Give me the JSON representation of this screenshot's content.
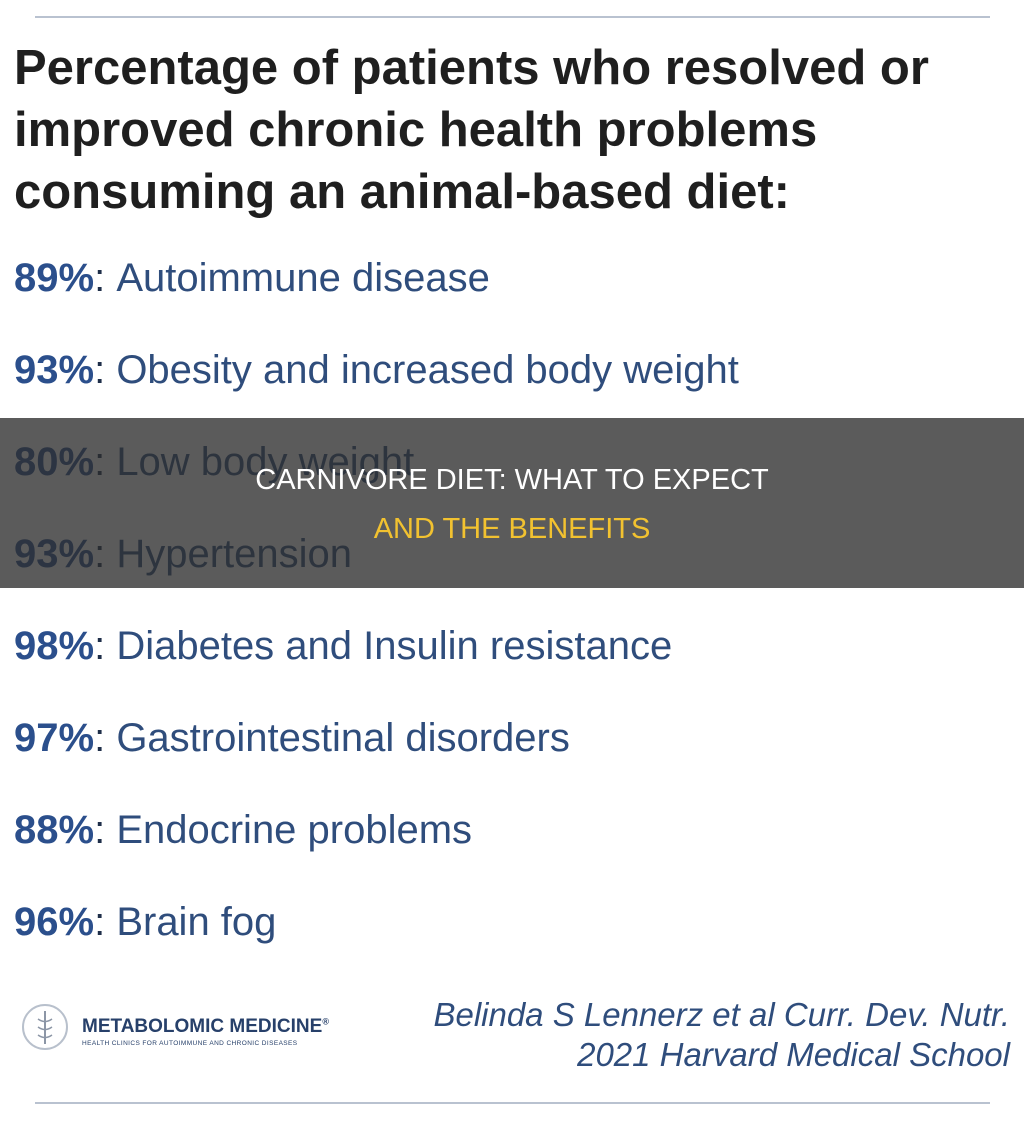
{
  "title": [
    "Percentage of patients who resolved or",
    "improved chronic health problems",
    "consuming an animal-based diet:"
  ],
  "separator": ":",
  "items": [
    {
      "percent": "89%",
      "label": "Autoimmune disease"
    },
    {
      "percent": "93%",
      "label": "Obesity and increased body weight"
    },
    {
      "percent": "80%",
      "label": "Low body weight"
    },
    {
      "percent": "93%",
      "label": "Hypertension"
    },
    {
      "percent": "98%",
      "label": "Diabetes and Insulin resistance"
    },
    {
      "percent": "97%",
      "label": "Gastrointestinal disorders"
    },
    {
      "percent": "88%",
      "label": "Endocrine problems"
    },
    {
      "percent": "96%",
      "label": "Brain fog"
    }
  ],
  "logo": {
    "name": "METABOLOMIC MEDICINE",
    "mark": "®",
    "tagline": "HEALTH CLINICS FOR AUTOIMMUNE AND CHRONIC DISEASES"
  },
  "citation": [
    "Belinda S Lennerz et al Curr. Dev. Nutr.",
    "2021 Harvard Medical School"
  ],
  "banner": [
    "CARNIVORE DIET: WHAT TO EXPECT",
    "AND THE BENEFITS"
  ]
}
